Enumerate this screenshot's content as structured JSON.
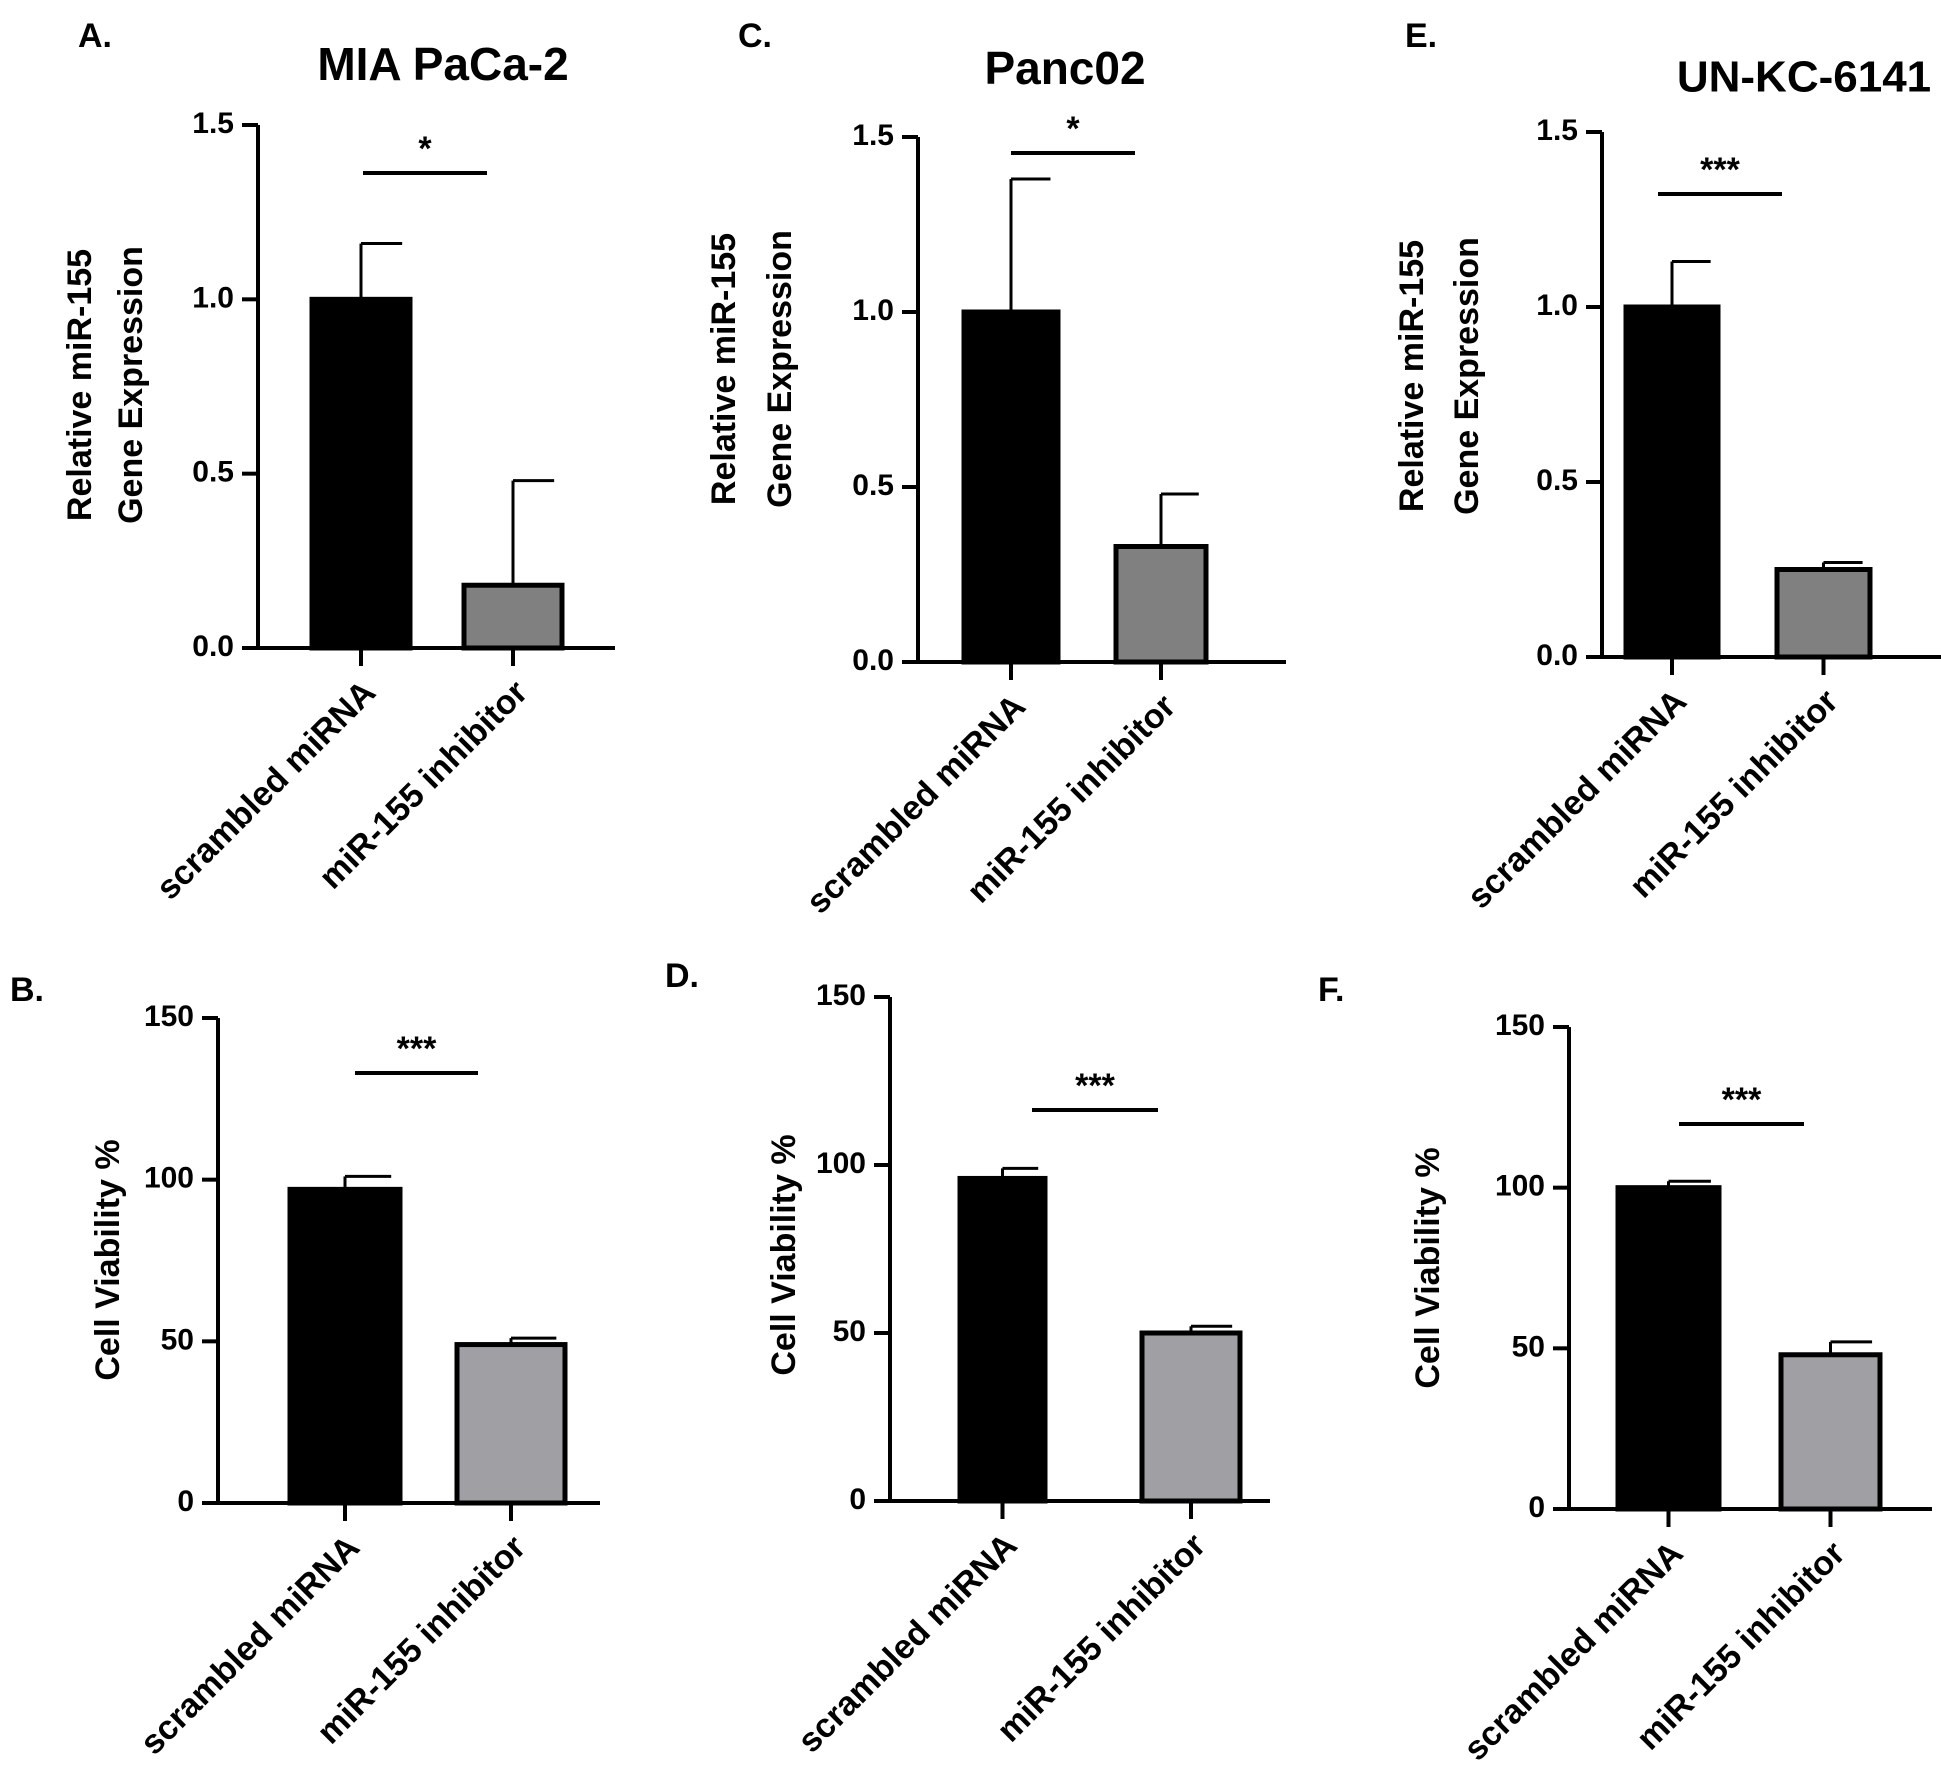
{
  "figure": {
    "panels": [
      "A.",
      "B.",
      "C.",
      "D.",
      "E.",
      "F."
    ]
  },
  "chart_data": [
    {
      "panel": "A.",
      "type": "bar",
      "title": "MIA PaCa-2",
      "ylabel": [
        "Relative miR-155",
        "Gene Expression"
      ],
      "xlabel": "",
      "categories": [
        "scrambled miRNA",
        "miR-155 inhibitor"
      ],
      "values": [
        1.0,
        0.18
      ],
      "errors": [
        0.16,
        0.3
      ],
      "bar_colors": [
        "#000000",
        "#808080"
      ],
      "ylim": [
        0,
        1.5
      ],
      "yticks": [
        0,
        0.5,
        1.0,
        1.5
      ],
      "ytick_labels": [
        "0.0",
        "0.5",
        "1.0",
        "1.5"
      ],
      "significance": "*",
      "grid": false
    },
    {
      "panel": "B.",
      "type": "bar",
      "title": "",
      "ylabel": [
        "Cell Viability %"
      ],
      "xlabel": "",
      "categories": [
        "scrambled miRNA",
        "miR-155 inhibitor"
      ],
      "values": [
        97,
        49
      ],
      "errors": [
        4,
        2
      ],
      "bar_colors": [
        "#000000",
        "#a0a0a4"
      ],
      "ylim": [
        0,
        150
      ],
      "yticks": [
        0,
        50,
        100,
        150
      ],
      "ytick_labels": [
        "0",
        "50",
        "100",
        "150"
      ],
      "significance": "***",
      "grid": false
    },
    {
      "panel": "C.",
      "type": "bar",
      "title": "Panc02",
      "ylabel": [
        "Relative miR-155",
        "Gene Expression"
      ],
      "xlabel": "",
      "categories": [
        "scrambled miRNA",
        "miR-155 inhibitor"
      ],
      "values": [
        1.0,
        0.33
      ],
      "errors": [
        0.38,
        0.15
      ],
      "bar_colors": [
        "#000000",
        "#808080"
      ],
      "ylim": [
        0,
        1.5
      ],
      "yticks": [
        0,
        0.5,
        1.0,
        1.5
      ],
      "ytick_labels": [
        "0.0",
        "0.5",
        "1.0",
        "1.5"
      ],
      "significance": "*",
      "grid": false
    },
    {
      "panel": "D.",
      "type": "bar",
      "title": "",
      "ylabel": [
        "Cell Viability %"
      ],
      "xlabel": "",
      "categories": [
        "scrambled miRNA",
        "miR-155 inhibitor"
      ],
      "values": [
        96,
        50
      ],
      "errors": [
        3,
        2
      ],
      "bar_colors": [
        "#000000",
        "#a0a0a4"
      ],
      "ylim": [
        0,
        150
      ],
      "yticks": [
        0,
        50,
        100,
        150
      ],
      "ytick_labels": [
        "0",
        "50",
        "100",
        "150"
      ],
      "significance": "***",
      "grid": false
    },
    {
      "panel": "E.",
      "type": "bar",
      "title": "UN-KC-6141",
      "ylabel": [
        "Relative miR-155",
        "Gene Expression"
      ],
      "xlabel": "",
      "categories": [
        "scrambled miRNA",
        "miR-155 inhibitor"
      ],
      "values": [
        1.0,
        0.25
      ],
      "errors": [
        0.13,
        0.02
      ],
      "bar_colors": [
        "#000000",
        "#808080"
      ],
      "ylim": [
        0,
        1.5
      ],
      "yticks": [
        0,
        0.5,
        1.0,
        1.5
      ],
      "ytick_labels": [
        "0.0",
        "0.5",
        "1.0",
        "1.5"
      ],
      "significance": "***",
      "grid": false
    },
    {
      "panel": "F.",
      "type": "bar",
      "title": "",
      "ylabel": [
        "Cell Viability %"
      ],
      "xlabel": "",
      "categories": [
        "scrambled miRNA",
        "miR-155 inhibitor"
      ],
      "values": [
        100,
        48
      ],
      "errors": [
        2,
        4
      ],
      "bar_colors": [
        "#000000",
        "#a0a0a4"
      ],
      "ylim": [
        0,
        150
      ],
      "yticks": [
        0,
        50,
        100,
        150
      ],
      "ytick_labels": [
        "0",
        "50",
        "100",
        "150"
      ],
      "significance": "***",
      "grid": false
    }
  ]
}
